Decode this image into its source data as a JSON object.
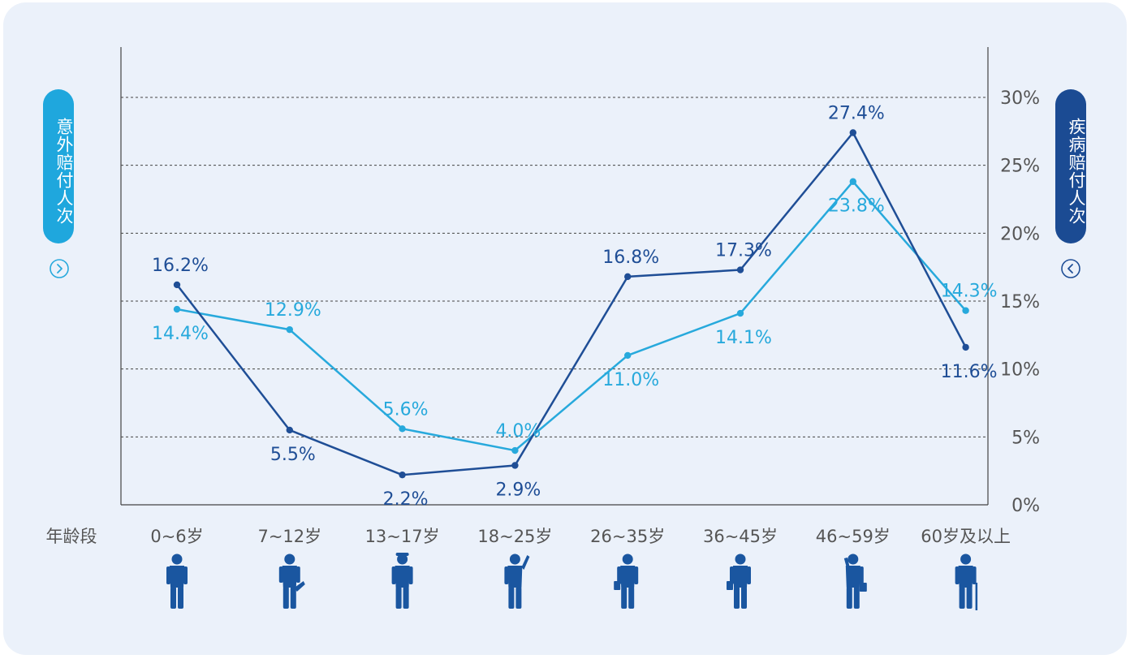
{
  "left_axis_label": "意外赔付人次",
  "right_axis_label": "疾病赔付人次",
  "x_title": "年龄段",
  "colors": {
    "accident": "#27a9dc",
    "disease": "#1f4e96",
    "grid": "#444444",
    "tick": "#555555",
    "figure": "#1a56a0",
    "background": "#ebf1fa"
  },
  "icons": {
    "left": "chevron-right-circle-icon",
    "right": "chevron-left-circle-icon"
  },
  "figure_icons": [
    "toddler-silhouette-icon",
    "child-kicking-silhouette-icon",
    "teen-with-cap-silhouette-icon",
    "young-adult-waving-silhouette-icon",
    "adult-with-briefcase-silhouette-icon",
    "adult-walking-with-bag-silhouette-icon",
    "adult-on-phone-with-briefcase-silhouette-icon",
    "elderly-with-cane-silhouette-icon"
  ],
  "chart_data": {
    "type": "line",
    "categories": [
      "0~6岁",
      "7~12岁",
      "13~17岁",
      "18~25岁",
      "26~35岁",
      "36~45岁",
      "46~59岁",
      "60岁及以上"
    ],
    "y_ticks": [
      "0%",
      "5%",
      "10%",
      "15%",
      "20%",
      "25%",
      "30%"
    ],
    "ylim": [
      0,
      30
    ],
    "grid": true,
    "grid_style": "dashed",
    "series": [
      {
        "values": [
          14.4,
          12.9,
          5.6,
          4.0,
          11.0,
          14.1,
          23.8,
          14.3
        ],
        "labels": [
          "14.4%",
          "12.9%",
          "5.6%",
          "4.0%",
          "11.0%",
          "14.1%",
          "23.8%",
          "14.3%"
        ]
      },
      {
        "values": [
          16.2,
          5.5,
          2.2,
          2.9,
          16.8,
          17.3,
          27.4,
          11.6
        ],
        "labels": [
          "16.2%",
          "5.5%",
          "2.2%",
          "2.9%",
          "16.8%",
          "17.3%",
          "27.4%",
          "11.6%"
        ]
      }
    ]
  }
}
